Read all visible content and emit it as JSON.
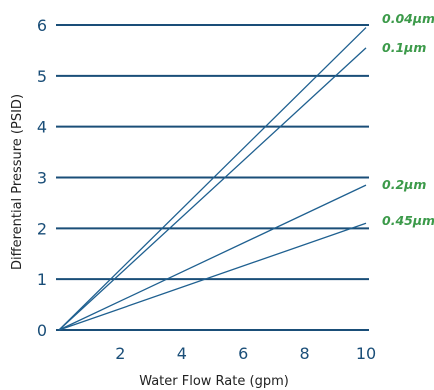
{
  "chart_data": {
    "type": "line",
    "title": "",
    "xlabel": "Water Flow Rate (gpm)",
    "ylabel": "Differential Pressure (PSID)",
    "xlim": [
      0,
      10
    ],
    "ylim": [
      0,
      6
    ],
    "x_ticks": [
      "2",
      "4",
      "6",
      "8",
      "10"
    ],
    "y_ticks": [
      "0",
      "1",
      "2",
      "3",
      "4",
      "5",
      "6"
    ],
    "grid": "horizontal",
    "legend": "inline labels at right end of lines",
    "colors": {
      "grid": "#1a4e78",
      "line": "#1f6090",
      "label": "#3c9a4a"
    },
    "series": [
      {
        "name": "0.04μm",
        "x": [
          0,
          10
        ],
        "y": [
          0,
          5.95
        ]
      },
      {
        "name": "0.1μm",
        "x": [
          0,
          10
        ],
        "y": [
          0,
          5.55
        ]
      },
      {
        "name": "0.2μm",
        "x": [
          0,
          10
        ],
        "y": [
          0,
          2.85
        ]
      },
      {
        "name": "0.45μm",
        "x": [
          0,
          10
        ],
        "y": [
          0,
          2.1
        ]
      }
    ]
  }
}
